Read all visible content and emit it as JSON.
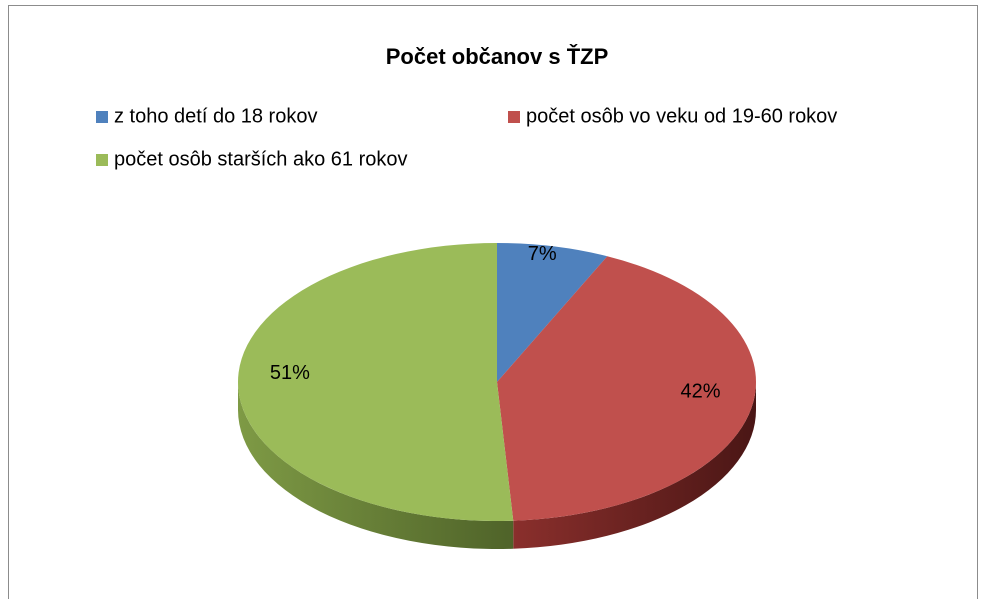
{
  "chart_data": {
    "type": "pie",
    "title": "Počet občanov s ŤZP",
    "categories": [
      "z toho detí do 18 rokov",
      "počet osôb vo veku od 19-60 rokov",
      "počet osôb starších ako 61 rokov"
    ],
    "values": [
      7,
      42,
      51
    ],
    "value_labels": [
      "7%",
      "42%",
      "51%"
    ],
    "colors": [
      "#4f81bd",
      "#c0504d",
      "#9bbb59"
    ],
    "legend": "top"
  }
}
